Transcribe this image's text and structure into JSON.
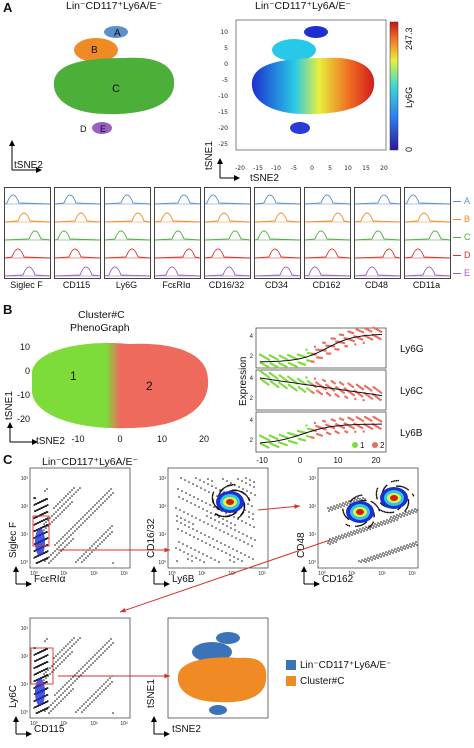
{
  "figure": {
    "panels": {
      "A": {
        "letter": "A",
        "left_title": "Lin⁻CD117⁺Ly6A/E⁻",
        "right_title": "Lin⁻CD117⁺Ly6A/E⁻",
        "cluster_labels": [
          "A",
          "B",
          "C",
          "D",
          "E"
        ],
        "xlabel": "tSNE2",
        "ylabel": "tSNE1",
        "x_ticks": [
          "-20",
          "-15",
          "-10",
          "-5",
          "0",
          "5",
          "10",
          "15",
          "20"
        ],
        "y_ticks": [
          "10",
          "5",
          "0",
          "-5",
          "-10",
          "-15",
          "-20",
          "-25"
        ],
        "colorbar_label": "Ly6G",
        "colorbar_max": "247.3",
        "colorbar_min": "0",
        "histogram_markers": [
          "Siglec F",
          "CD115",
          "Ly6G",
          "FcεRIα",
          "CD16/32",
          "CD34",
          "CD162",
          "CD48",
          "CD11a"
        ],
        "legend": [
          {
            "label": "A",
            "color": "#5b8fc9"
          },
          {
            "label": "B",
            "color": "#f08a24"
          },
          {
            "label": "C",
            "color": "#4caf3a"
          },
          {
            "label": "D",
            "color": "#d7322a"
          },
          {
            "label": "E",
            "color": "#9a5fc7"
          }
        ]
      },
      "B": {
        "letter": "B",
        "title_line1": "Cluster#C",
        "title_line2": "PhenoGraph",
        "cluster1_label": "1",
        "cluster2_label": "2",
        "xlabel": "tSNE2",
        "ylabel": "tSNE1",
        "x_ticks": [
          "-10",
          "0",
          "10",
          "20"
        ],
        "y_ticks": [
          "10",
          "0",
          "-10",
          "-20"
        ],
        "trend_ylabel": "Expression",
        "trend_panels": [
          "Ly6G",
          "Ly6C",
          "Ly6B"
        ],
        "trend_x_ticks": [
          "-10",
          "0",
          "10",
          "20"
        ],
        "trend_y_ticks": [
          "5",
          "4",
          "3",
          "2",
          "1"
        ],
        "legend": [
          {
            "label": "1",
            "color": "#7ddc3a"
          },
          {
            "label": "2",
            "color": "#ee6a5c"
          }
        ]
      },
      "C": {
        "letter": "C",
        "gate_title": "Lin⁻CD117⁺Ly6A/E⁻",
        "plot1": {
          "xlabel": "FcεRIα",
          "ylabel": "Siglec F"
        },
        "plot2": {
          "xlabel": "Ly6B",
          "ylabel": "CD16/32"
        },
        "plot3": {
          "xlabel": "CD162",
          "ylabel": "CD48"
        },
        "plot4": {
          "xlabel": "CD115",
          "ylabel": "Ly6C"
        },
        "plot5": {
          "xlabel": "tSNE2",
          "ylabel": "tSNE1"
        },
        "log_ticks": [
          "10⁰",
          "10¹",
          "10²",
          "10³"
        ],
        "legend": [
          {
            "label": "Lin⁻CD117⁺Ly6A/E⁻",
            "color": "#3a73b8"
          },
          {
            "label": "Cluster#C",
            "color": "#f08a24"
          }
        ]
      }
    }
  }
}
